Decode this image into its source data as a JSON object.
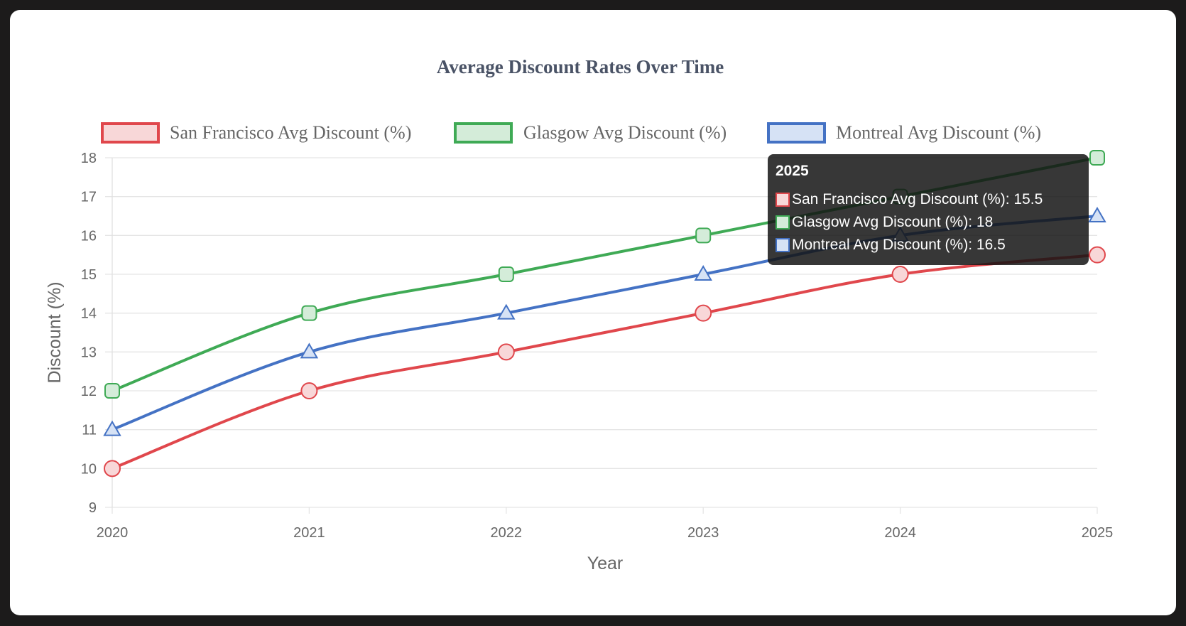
{
  "chart_data": {
    "type": "line",
    "title": "Average Discount Rates Over Time",
    "xlabel": "Year",
    "ylabel": "Discount (%)",
    "categories": [
      "2020",
      "2021",
      "2022",
      "2023",
      "2024",
      "2025"
    ],
    "ylim": [
      9,
      18
    ],
    "yticks": [
      "9",
      "10",
      "11",
      "12",
      "13",
      "14",
      "15",
      "16",
      "17",
      "18"
    ],
    "grid": true,
    "legend_position": "top",
    "series": [
      {
        "name": "San Francisco Avg Discount (%)",
        "values": [
          10,
          12,
          13,
          14,
          15,
          15.5
        ],
        "color": "#e0474c",
        "fill": "#f8d7d8",
        "marker": "circle"
      },
      {
        "name": "Glasgow Avg Discount (%)",
        "values": [
          12,
          14,
          15,
          16,
          17,
          18
        ],
        "color": "#3faa55",
        "fill": "#d4ecd9",
        "marker": "rect"
      },
      {
        "name": "Montreal Avg Discount (%)",
        "values": [
          11,
          13,
          14,
          15,
          16,
          16.5
        ],
        "color": "#4472c4",
        "fill": "#d6e2f5",
        "marker": "triangle"
      }
    ],
    "tooltip": {
      "title": "2025",
      "rows": [
        "San Francisco Avg Discount (%): 15.5",
        "Glasgow Avg Discount (%): 18",
        "Montreal Avg Discount (%): 16.5"
      ]
    }
  }
}
